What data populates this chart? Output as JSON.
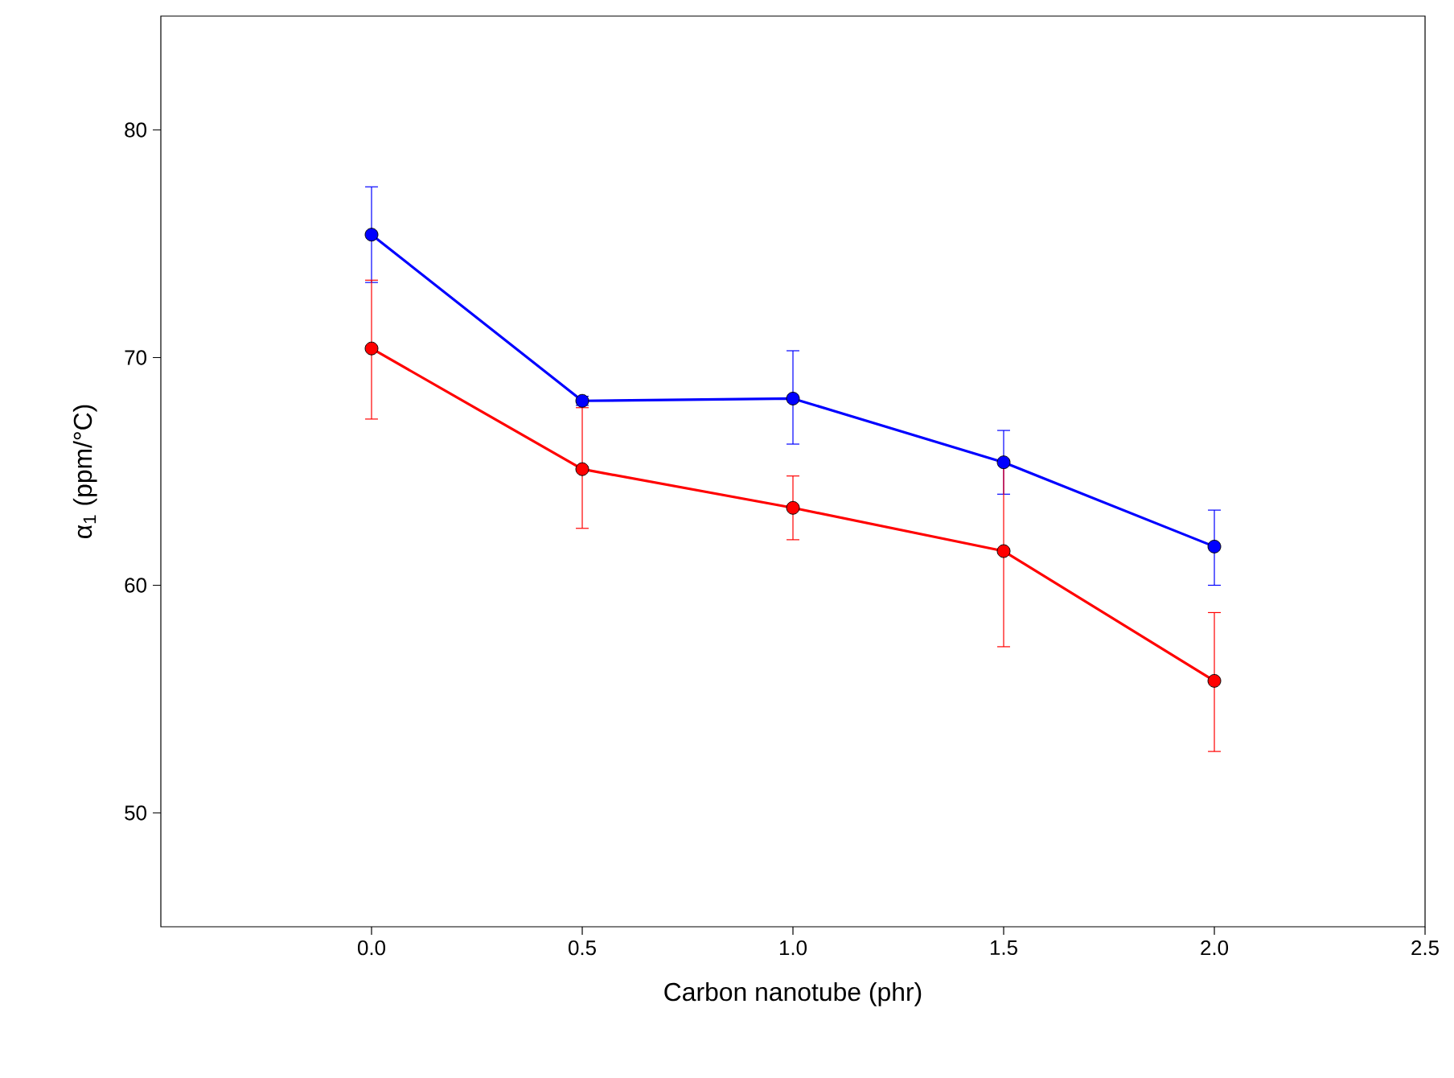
{
  "chart_data": {
    "type": "line",
    "xlabel": "Carbon nanotube (phr)",
    "ylabel": "α$_{1}$ (ppm/°C)",
    "x": [
      0.0,
      0.5,
      1.0,
      1.5,
      2.0
    ],
    "series": [
      {
        "color": "#0000ff",
        "values": [
          75.4,
          68.1,
          68.2,
          65.4,
          61.7
        ],
        "errors": [
          [
            73.3,
            77.5
          ],
          [
            67.9,
            68.3
          ],
          [
            66.2,
            70.3
          ],
          [
            64.0,
            66.8
          ],
          [
            60.0,
            63.3
          ]
        ]
      },
      {
        "color": "#ff0000",
        "values": [
          70.4,
          65.1,
          63.4,
          61.5,
          55.8
        ],
        "errors": [
          [
            67.3,
            73.4
          ],
          [
            62.5,
            67.8
          ],
          [
            62.0,
            64.8
          ],
          [
            57.3,
            65.5
          ],
          [
            52.7,
            58.8
          ]
        ]
      }
    ],
    "xlim": [
      -0.5,
      2.5
    ],
    "ylim": [
      45,
      85
    ],
    "xticks": [
      {
        "value": 0,
        "label": "0.0"
      },
      0.5,
      {
        "value": 1,
        "label": "1.0"
      },
      1.5,
      {
        "value": 2,
        "label": "2.0"
      },
      2.5
    ],
    "yticks": [
      50,
      60,
      70,
      80
    ],
    "marker": "circle",
    "line_style": "solid",
    "grid": false
  }
}
